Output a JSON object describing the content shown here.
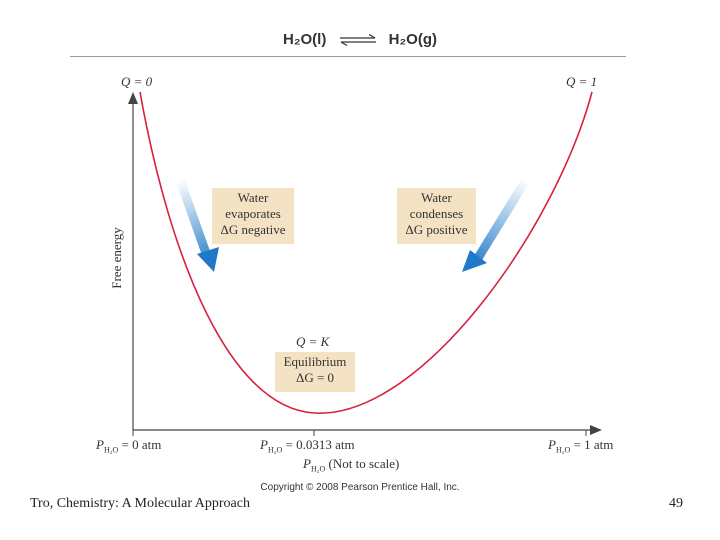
{
  "equation": {
    "left": "H₂O(l)",
    "right": "H₂O(g)"
  },
  "q_labels": {
    "left": "Q = 0",
    "right": "Q = 1",
    "middle": "Q = K"
  },
  "y_axis_label": "Free energy",
  "boxes": {
    "evaporates": [
      "Water",
      "evaporates",
      "ΔG negative"
    ],
    "condenses": [
      "Water",
      "condenses",
      "ΔG positive"
    ],
    "equilibrium": [
      "Equilibrium",
      "ΔG = 0"
    ]
  },
  "x_labels": {
    "left": {
      "p": "P",
      "sub": "H₂O",
      "value": " = 0 atm"
    },
    "middle": {
      "p": "P",
      "sub": "H₂O",
      "value": " = 0.0313 atm"
    },
    "right": {
      "p": "P",
      "sub": "H₂O",
      "value": " = 1 atm"
    },
    "axis": {
      "p": "P",
      "sub": "H₂O",
      "value": " (Not to scale)"
    }
  },
  "copyright": "Copyright © 2008 Pearson Prentice Hall, Inc.",
  "footer": {
    "left": "Tro, Chemistry: A Molecular Approach",
    "page_number": "49"
  },
  "colors": {
    "curve": "#d6223e",
    "arrow": "#1f78c8",
    "box": "#f3e2c4"
  }
}
